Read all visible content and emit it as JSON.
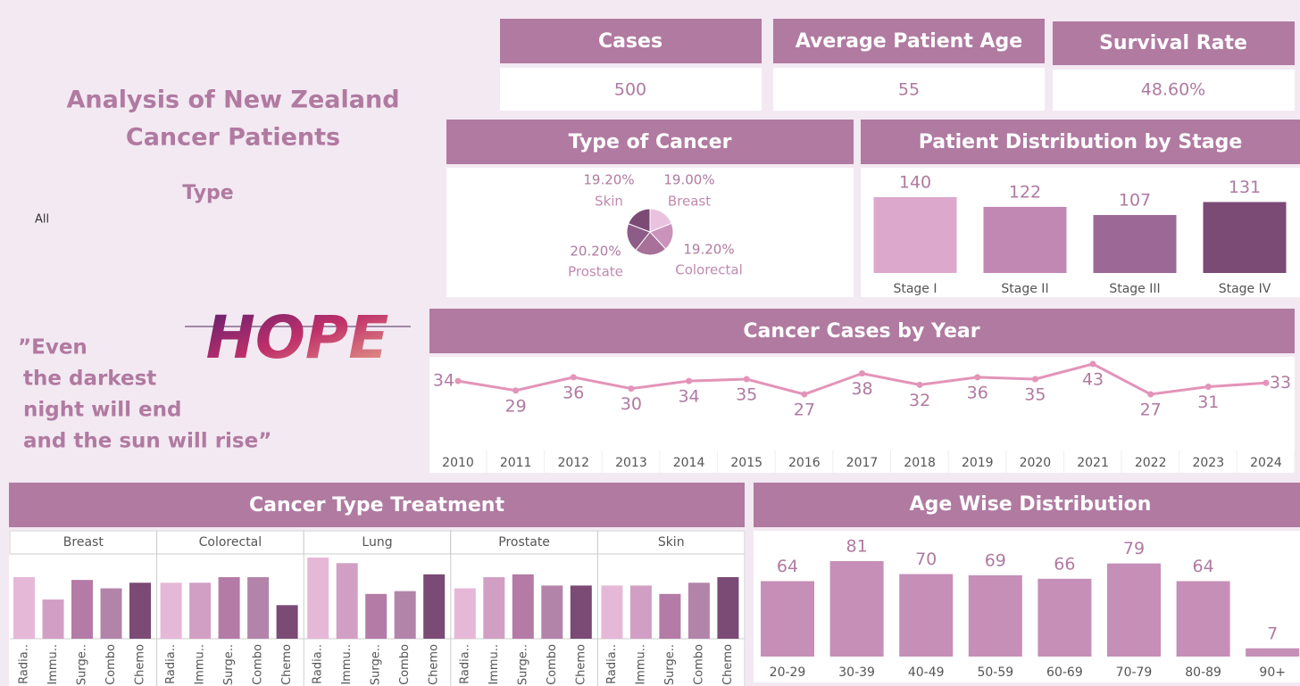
{
  "header": {
    "title": [
      "Analysis of New Zealand",
      "Cancer Patients"
    ]
  },
  "filter": {
    "label": "Type",
    "value": "All"
  },
  "logo": "HOPE",
  "quote": [
    "”Even",
    "the darkest",
    "night will end",
    "and the sun will rise”"
  ],
  "kpis": [
    {
      "label": "Cases",
      "value": "500"
    },
    {
      "label": "Average Patient Age",
      "value": "55"
    },
    {
      "label": "Survival Rate",
      "value": "48.60%"
    }
  ],
  "chart_data": [
    {
      "type": "pie",
      "title": "Type of Cancer",
      "categories": [
        "Breast",
        "Colorectal",
        null,
        "Prostate",
        "Skin"
      ],
      "values": [
        19.0,
        19.2,
        22.4,
        20.2,
        19.2
      ],
      "value_labels": [
        "19.00%",
        "19.20%",
        null,
        "20.20%",
        "19.20%"
      ],
      "colors": [
        "#e8c2de",
        "#c993bc",
        "#a77199",
        "#8e5c89",
        "#7b4a75"
      ]
    },
    {
      "type": "bar",
      "title": "Patient Distribution by Stage",
      "categories": [
        "Stage I",
        "Stage II",
        "Stage III",
        "Stage IV"
      ],
      "values": [
        140,
        122,
        107,
        131
      ],
      "colors": [
        "#dca8cc",
        "#c288b4",
        "#9c6896",
        "#7b4a75"
      ]
    },
    {
      "type": "line",
      "title": "Cancer Cases by Year",
      "categories": [
        2010,
        2011,
        2012,
        2013,
        2014,
        2015,
        2016,
        2017,
        2018,
        2019,
        2020,
        2021,
        2022,
        2023,
        2024
      ],
      "values": [
        34,
        29,
        36,
        30,
        34,
        35,
        27,
        38,
        32,
        36,
        35,
        43,
        27,
        31,
        33
      ],
      "color": "#e394b8"
    },
    {
      "type": "grouped-panels",
      "title": "Cancer Type Treatment",
      "categories": [
        "Radia..",
        "Immu..",
        "Surge..",
        "Combo",
        "Chemo"
      ],
      "colors": [
        "#e6b8d8",
        "#d29fc4",
        "#b47ba6",
        "#b384aa",
        "#7b4a75"
      ],
      "panels": [
        {
          "name": "Breast",
          "values": [
            22,
            14,
            21,
            18,
            20
          ]
        },
        {
          "name": "Colorectal",
          "values": [
            20,
            20,
            22,
            22,
            12
          ]
        },
        {
          "name": "Lung",
          "values": [
            29,
            27,
            16,
            17,
            23
          ]
        },
        {
          "name": "Prostate",
          "values": [
            18,
            22,
            23,
            19,
            19
          ]
        },
        {
          "name": "Skin",
          "values": [
            19,
            19,
            16,
            20,
            22
          ]
        }
      ]
    },
    {
      "type": "bar",
      "title": "Age Wise Distribution",
      "categories": [
        "20-29",
        "30-39",
        "40-49",
        "50-59",
        "60-69",
        "70-79",
        "80-89",
        "90+"
      ],
      "values": [
        64,
        81,
        70,
        69,
        66,
        79,
        64,
        7
      ],
      "color": "#c58fb8"
    }
  ]
}
